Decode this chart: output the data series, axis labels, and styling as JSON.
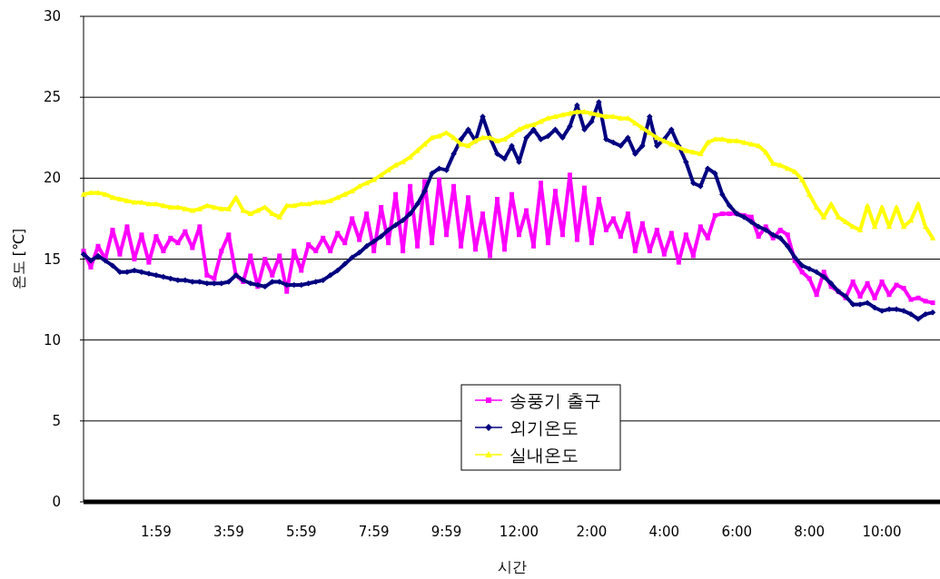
{
  "chart_data": {
    "type": "line",
    "xlabel": "시간",
    "ylabel": "온도 [℃]",
    "categories": [
      null,
      null,
      null,
      null,
      null,
      null,
      null,
      null,
      null,
      null,
      "1:59",
      null,
      null,
      null,
      null,
      null,
      null,
      null,
      null,
      null,
      "3:59",
      null,
      null,
      null,
      null,
      null,
      null,
      null,
      null,
      null,
      "5:59",
      null,
      null,
      null,
      null,
      null,
      null,
      null,
      null,
      null,
      "7:59",
      null,
      null,
      null,
      null,
      null,
      null,
      null,
      null,
      null,
      "9:59",
      null,
      null,
      null,
      null,
      null,
      null,
      null,
      null,
      null,
      "12:00",
      null,
      null,
      null,
      null,
      null,
      null,
      null,
      null,
      null,
      "2:00",
      null,
      null,
      null,
      null,
      null,
      null,
      null,
      null,
      null,
      "4:00",
      null,
      null,
      null,
      null,
      null,
      null,
      null,
      null,
      null,
      "6:00",
      null,
      null,
      null,
      null,
      null,
      null,
      null,
      null,
      null,
      "8:00",
      null,
      null,
      null,
      null,
      null,
      null,
      null,
      null,
      null,
      "10:00",
      null,
      null,
      null,
      null,
      null,
      null,
      null
    ],
    "ylim": [
      0,
      30
    ],
    "yticks": [
      0,
      5,
      10,
      15,
      20,
      25,
      30
    ],
    "grid": "y",
    "legend": "bottom",
    "series": [
      {
        "name": "송풍기 출구",
        "color": "#ff00ff",
        "marker": "square",
        "values": [
          15.5,
          14.5,
          15.8,
          15.0,
          16.8,
          15.3,
          17.0,
          15.0,
          16.5,
          14.8,
          16.4,
          15.5,
          16.3,
          16.0,
          16.7,
          15.7,
          17.0,
          14.0,
          13.8,
          15.5,
          16.5,
          14.0,
          13.6,
          15.2,
          13.3,
          15.0,
          14.0,
          15.2,
          13.0,
          15.5,
          14.3,
          15.9,
          15.5,
          16.3,
          15.5,
          16.6,
          16.0,
          17.5,
          16.2,
          17.8,
          15.5,
          18.2,
          16.0,
          19.0,
          15.5,
          19.5,
          15.8,
          19.8,
          16.0,
          19.9,
          16.5,
          19.5,
          15.8,
          18.8,
          15.6,
          17.8,
          15.2,
          18.7,
          15.6,
          19.0,
          16.5,
          18.0,
          15.8,
          19.7,
          16.0,
          19.2,
          16.5,
          20.2,
          16.2,
          19.4,
          16.0,
          18.7,
          16.8,
          17.5,
          16.4,
          17.8,
          15.5,
          17.2,
          15.5,
          16.8,
          15.3,
          16.6,
          14.8,
          16.5,
          15.2,
          17.0,
          16.3,
          17.7,
          17.8,
          17.8,
          17.8,
          17.7,
          17.6,
          16.4,
          17.0,
          16.3,
          16.8,
          16.5,
          14.9,
          14.2,
          13.8,
          12.8,
          14.2,
          13.3,
          13.0,
          12.6,
          13.6,
          12.7,
          13.5,
          12.6,
          13.6,
          12.8,
          13.4,
          13.2,
          12.5,
          12.6,
          12.4,
          12.3
        ]
      },
      {
        "name": "외기온도",
        "color": "#000080",
        "marker": "diamond",
        "values": [
          15.3,
          14.9,
          15.2,
          14.9,
          14.6,
          14.2,
          14.2,
          14.3,
          14.2,
          14.1,
          14.0,
          13.9,
          13.8,
          13.7,
          13.7,
          13.6,
          13.6,
          13.5,
          13.5,
          13.5,
          13.6,
          14.0,
          13.7,
          13.5,
          13.4,
          13.3,
          13.6,
          13.6,
          13.4,
          13.4,
          13.4,
          13.5,
          13.6,
          13.7,
          14.0,
          14.3,
          14.7,
          15.1,
          15.4,
          15.8,
          16.1,
          16.4,
          16.8,
          17.1,
          17.4,
          17.8,
          18.4,
          19.2,
          20.3,
          20.6,
          20.5,
          21.5,
          22.4,
          23.0,
          22.3,
          23.8,
          22.5,
          21.5,
          21.2,
          22.0,
          21.0,
          22.5,
          23.0,
          22.4,
          22.6,
          23.0,
          22.5,
          23.2,
          24.5,
          23.0,
          23.5,
          24.7,
          22.4,
          22.2,
          22.0,
          22.5,
          21.5,
          22.0,
          23.8,
          22.0,
          22.4,
          23.0,
          22.0,
          21.0,
          19.7,
          19.5,
          20.6,
          20.3,
          19.0,
          18.3,
          17.8,
          17.6,
          17.3,
          17.0,
          16.8,
          16.5,
          16.3,
          15.8,
          15.1,
          14.6,
          14.4,
          14.2,
          13.9,
          13.5,
          13.0,
          12.7,
          12.2,
          12.2,
          12.3,
          12.0,
          11.8,
          11.9,
          11.9,
          11.8,
          11.6,
          11.3,
          11.6,
          11.7
        ]
      },
      {
        "name": "실내온도",
        "color": "#ffff00",
        "marker": "triangle",
        "values": [
          19.0,
          19.1,
          19.1,
          19.0,
          18.8,
          18.7,
          18.6,
          18.5,
          18.5,
          18.4,
          18.4,
          18.3,
          18.2,
          18.2,
          18.1,
          18.0,
          18.1,
          18.3,
          18.2,
          18.1,
          18.1,
          18.8,
          18.0,
          17.8,
          18.0,
          18.2,
          17.8,
          17.6,
          18.3,
          18.3,
          18.4,
          18.4,
          18.5,
          18.5,
          18.6,
          18.8,
          19.0,
          19.2,
          19.5,
          19.7,
          19.9,
          20.2,
          20.5,
          20.8,
          21.0,
          21.3,
          21.7,
          22.1,
          22.5,
          22.6,
          22.8,
          22.5,
          22.1,
          22.0,
          22.3,
          22.5,
          22.5,
          22.3,
          22.4,
          22.7,
          23.0,
          23.2,
          23.3,
          23.5,
          23.7,
          23.8,
          23.9,
          24.0,
          24.1,
          24.1,
          24.0,
          23.9,
          23.8,
          23.8,
          23.7,
          23.7,
          23.4,
          23.1,
          22.8,
          22.5,
          22.3,
          22.1,
          21.9,
          21.7,
          21.6,
          21.5,
          22.2,
          22.4,
          22.4,
          22.3,
          22.3,
          22.2,
          22.1,
          22.0,
          21.6,
          20.9,
          20.8,
          20.6,
          20.4,
          19.9,
          19.0,
          18.2,
          17.6,
          18.4,
          17.6,
          17.3,
          17.0,
          16.8,
          18.3,
          17.0,
          18.2,
          17.0,
          18.2,
          17.0,
          17.4,
          18.4,
          17.0,
          16.3
        ]
      }
    ]
  }
}
